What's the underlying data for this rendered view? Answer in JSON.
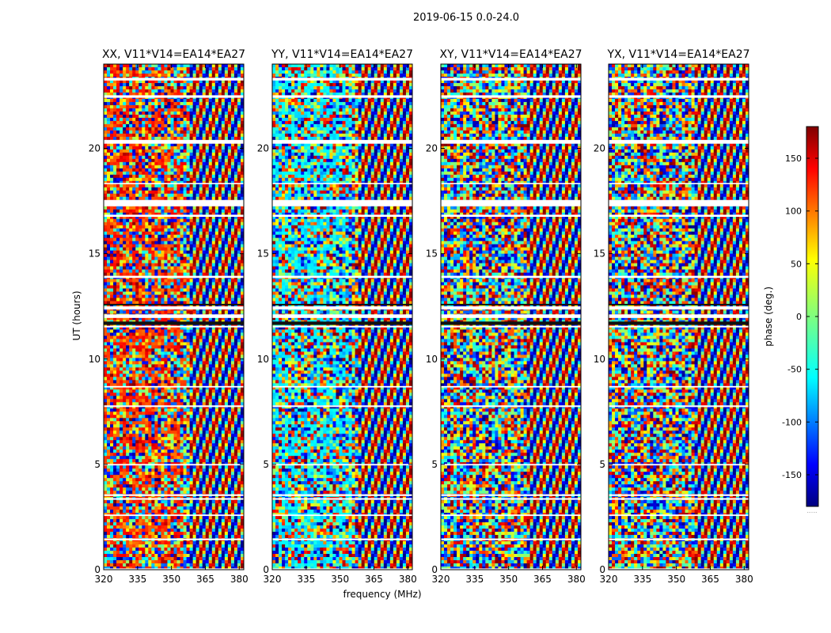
{
  "chart_data": {
    "type": "heatmap",
    "title": "2019-06-15 0.0-24.0",
    "xlabel": "frequency (MHz)",
    "ylabel": "UT (hours)",
    "xlim": [
      320,
      382
    ],
    "ylim": [
      0,
      24
    ],
    "x_ticks": [
      320,
      335,
      350,
      365,
      380
    ],
    "y_ticks": [
      0,
      5,
      10,
      15,
      20
    ],
    "panels": [
      {
        "name": "XX",
        "title": "XX, V11*V14=EA14*EA27"
      },
      {
        "name": "YY",
        "title": "YY, V11*V14=EA14*EA27"
      },
      {
        "name": "XY",
        "title": "XY, V11*V14=EA14*EA27"
      },
      {
        "name": "YX",
        "title": "YX, V11*V14=EA14*EA27"
      }
    ],
    "colorbar": {
      "label": "phase (deg.)",
      "range": [
        -180,
        180
      ],
      "ticks": [
        150,
        100,
        50,
        0,
        -50,
        -100,
        -150
      ],
      "colormap": "jet",
      "extra_mark": "......"
    },
    "flagged_gaps_ut": [
      [
        23.22,
        23.35
      ],
      [
        22.4,
        22.52
      ],
      [
        20.22,
        20.4
      ],
      [
        18.3,
        18.36
      ],
      [
        17.25,
        17.55
      ],
      [
        16.75,
        16.85
      ],
      [
        13.85,
        13.95
      ],
      [
        12.35,
        12.5
      ],
      [
        11.95,
        12.12
      ],
      [
        11.5,
        11.58
      ],
      [
        8.65,
        8.72
      ],
      [
        7.72,
        7.8
      ],
      [
        4.95,
        5.02
      ],
      [
        3.5,
        3.58
      ],
      [
        3.32,
        3.4
      ],
      [
        2.55,
        2.62
      ],
      [
        1.4,
        1.48
      ],
      [
        0.02,
        0.06
      ]
    ],
    "dark_flag_ut": [
      [
        11.62,
        11.78
      ],
      [
        12.55,
        12.62
      ]
    ]
  },
  "colors": {
    "background": "#ffffff",
    "axis": "#000000",
    "jet": [
      "#00007f",
      "#0000ff",
      "#007fff",
      "#00ffff",
      "#7fff7f",
      "#ffff00",
      "#ff7f00",
      "#ff0000",
      "#7f0000"
    ]
  }
}
